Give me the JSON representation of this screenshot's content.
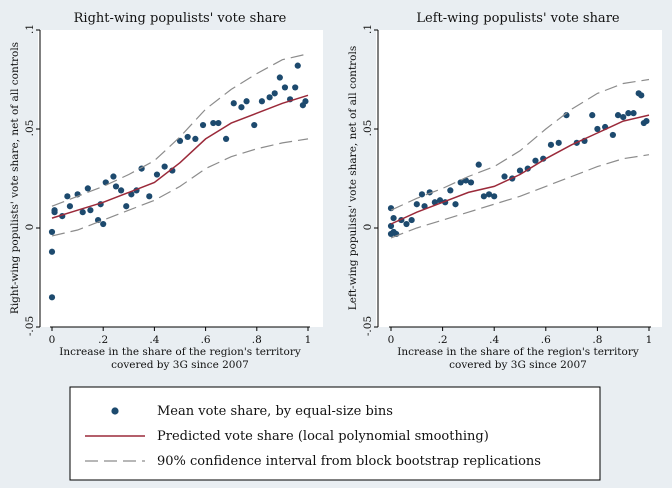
{
  "chart_data": [
    {
      "type": "scatter",
      "title": "Right-wing populists' vote share",
      "xlabel": [
        "Increase in the share of the region's territory",
        "covered by 3G since 2007"
      ],
      "ylabel": "Right-wing populists' vote share, net of all controls",
      "xlim": [
        0,
        1
      ],
      "ylim": [
        -0.05,
        0.1
      ],
      "xticks": [
        "0",
        ".2",
        ".4",
        ".6",
        ".8",
        "1"
      ],
      "xtick_values": [
        0,
        0.2,
        0.4,
        0.6,
        0.8,
        1
      ],
      "yticks": [
        "-.05",
        "0",
        ".05",
        ".1"
      ],
      "ytick_values": [
        -0.05,
        0,
        0.05,
        0.1
      ],
      "series": [
        {
          "name": "Mean vote share, by equal-size bins",
          "kind": "points",
          "x": [
            0,
            0,
            0,
            0.01,
            0.01,
            0.04,
            0.06,
            0.07,
            0.1,
            0.12,
            0.14,
            0.15,
            0.18,
            0.19,
            0.2,
            0.21,
            0.24,
            0.25,
            0.27,
            0.29,
            0.31,
            0.33,
            0.35,
            0.38,
            0.41,
            0.44,
            0.47,
            0.5,
            0.53,
            0.56,
            0.59,
            0.63,
            0.65,
            0.68,
            0.71,
            0.74,
            0.76,
            0.79,
            0.82,
            0.85,
            0.87,
            0.89,
            0.91,
            0.93,
            0.95,
            0.96,
            0.98,
            0.99
          ],
          "y": [
            -0.035,
            -0.012,
            -0.002,
            0.008,
            0.009,
            0.006,
            0.016,
            0.011,
            0.017,
            0.008,
            0.02,
            0.009,
            0.004,
            0.012,
            0.002,
            0.023,
            0.026,
            0.021,
            0.019,
            0.011,
            0.017,
            0.019,
            0.03,
            0.016,
            0.027,
            0.031,
            0.029,
            0.044,
            0.046,
            0.045,
            0.052,
            0.053,
            0.053,
            0.045,
            0.063,
            0.061,
            0.064,
            0.052,
            0.064,
            0.066,
            0.068,
            0.076,
            0.071,
            0.065,
            0.071,
            0.082,
            0.062,
            0.064
          ]
        },
        {
          "name": "Predicted vote share (local polynomial smoothing)",
          "kind": "line",
          "x": [
            0,
            0.1,
            0.2,
            0.3,
            0.4,
            0.5,
            0.6,
            0.7,
            0.8,
            0.9,
            1.0
          ],
          "y": [
            0.005,
            0.009,
            0.013,
            0.018,
            0.023,
            0.033,
            0.045,
            0.053,
            0.058,
            0.063,
            0.067
          ]
        },
        {
          "name": "90% confidence interval from block bootstrap replications (upper)",
          "kind": "dash",
          "x": [
            0,
            0.1,
            0.2,
            0.3,
            0.4,
            0.5,
            0.6,
            0.7,
            0.8,
            0.9,
            1.0
          ],
          "y": [
            0.011,
            0.016,
            0.021,
            0.027,
            0.034,
            0.046,
            0.06,
            0.07,
            0.078,
            0.085,
            0.088
          ]
        },
        {
          "name": "90% confidence interval from block bootstrap replications (lower)",
          "kind": "dash",
          "x": [
            0,
            0.1,
            0.2,
            0.3,
            0.4,
            0.5,
            0.6,
            0.7,
            0.8,
            0.9,
            1.0
          ],
          "y": [
            -0.004,
            -0.001,
            0.004,
            0.009,
            0.014,
            0.021,
            0.03,
            0.036,
            0.04,
            0.043,
            0.045
          ]
        }
      ]
    },
    {
      "type": "scatter",
      "title": "Left-wing populists' vote share",
      "xlabel": [
        "Increase in the share of the region's territory",
        "covered by 3G since 2007"
      ],
      "ylabel": "Left-wing populists' vote share, net of all controls",
      "xlim": [
        0,
        1
      ],
      "ylim": [
        -0.05,
        0.1
      ],
      "xticks": [
        "0",
        ".2",
        ".4",
        ".6",
        ".8",
        "1"
      ],
      "xtick_values": [
        0,
        0.2,
        0.4,
        0.6,
        0.8,
        1
      ],
      "yticks": [
        "-.05",
        "0",
        ".05",
        ".1"
      ],
      "ytick_values": [
        -0.05,
        0,
        0.05,
        0.1
      ],
      "series": [
        {
          "name": "Mean vote share, by equal-size bins",
          "kind": "points",
          "x": [
            0,
            0,
            0,
            0.01,
            0.01,
            0.02,
            0.04,
            0.06,
            0.08,
            0.1,
            0.12,
            0.13,
            0.15,
            0.17,
            0.19,
            0.21,
            0.23,
            0.25,
            0.27,
            0.29,
            0.31,
            0.34,
            0.36,
            0.38,
            0.4,
            0.44,
            0.47,
            0.5,
            0.53,
            0.56,
            0.59,
            0.62,
            0.65,
            0.68,
            0.72,
            0.75,
            0.78,
            0.8,
            0.83,
            0.86,
            0.88,
            0.9,
            0.92,
            0.94,
            0.96,
            0.97,
            0.98,
            0.99
          ],
          "y": [
            -0.003,
            0.001,
            0.01,
            0.005,
            -0.002,
            -0.003,
            0.004,
            0.002,
            0.004,
            0.012,
            0.017,
            0.011,
            0.018,
            0.013,
            0.014,
            0.013,
            0.019,
            0.012,
            0.023,
            0.024,
            0.023,
            0.032,
            0.016,
            0.017,
            0.016,
            0.026,
            0.025,
            0.029,
            0.03,
            0.034,
            0.035,
            0.042,
            0.043,
            0.057,
            0.043,
            0.044,
            0.057,
            0.05,
            0.051,
            0.047,
            0.057,
            0.056,
            0.058,
            0.058,
            0.068,
            0.067,
            0.053,
            0.054
          ]
        },
        {
          "name": "Predicted vote share (local polynomial smoothing)",
          "kind": "line",
          "x": [
            0,
            0.1,
            0.2,
            0.3,
            0.4,
            0.5,
            0.6,
            0.7,
            0.8,
            0.9,
            1.0
          ],
          "y": [
            0.002,
            0.008,
            0.013,
            0.018,
            0.021,
            0.027,
            0.035,
            0.042,
            0.048,
            0.054,
            0.057
          ]
        },
        {
          "name": "90% confidence interval from block bootstrap replications (upper)",
          "kind": "dash",
          "x": [
            0,
            0.1,
            0.2,
            0.3,
            0.4,
            0.5,
            0.6,
            0.7,
            0.8,
            0.9,
            1.0
          ],
          "y": [
            0.009,
            0.015,
            0.02,
            0.026,
            0.031,
            0.039,
            0.05,
            0.06,
            0.068,
            0.073,
            0.075
          ]
        },
        {
          "name": "90% confidence interval from block bootstrap replications (lower)",
          "kind": "dash",
          "x": [
            0,
            0.1,
            0.2,
            0.3,
            0.4,
            0.5,
            0.6,
            0.7,
            0.8,
            0.9,
            1.0
          ],
          "y": [
            -0.005,
            0,
            0.004,
            0.008,
            0.012,
            0.016,
            0.021,
            0.026,
            0.031,
            0.035,
            0.037
          ]
        }
      ]
    }
  ],
  "legend": {
    "items": [
      "Mean vote share, by equal-size bins",
      "Predicted vote share (local polynomial smoothing)",
      "90% confidence interval from block bootstrap replications"
    ]
  },
  "colors": {
    "points": "#1d4a6e",
    "line": "#9b2a3a",
    "dash": "#8c8c8c",
    "background": "#e9eef2",
    "plot": "#ffffff"
  }
}
